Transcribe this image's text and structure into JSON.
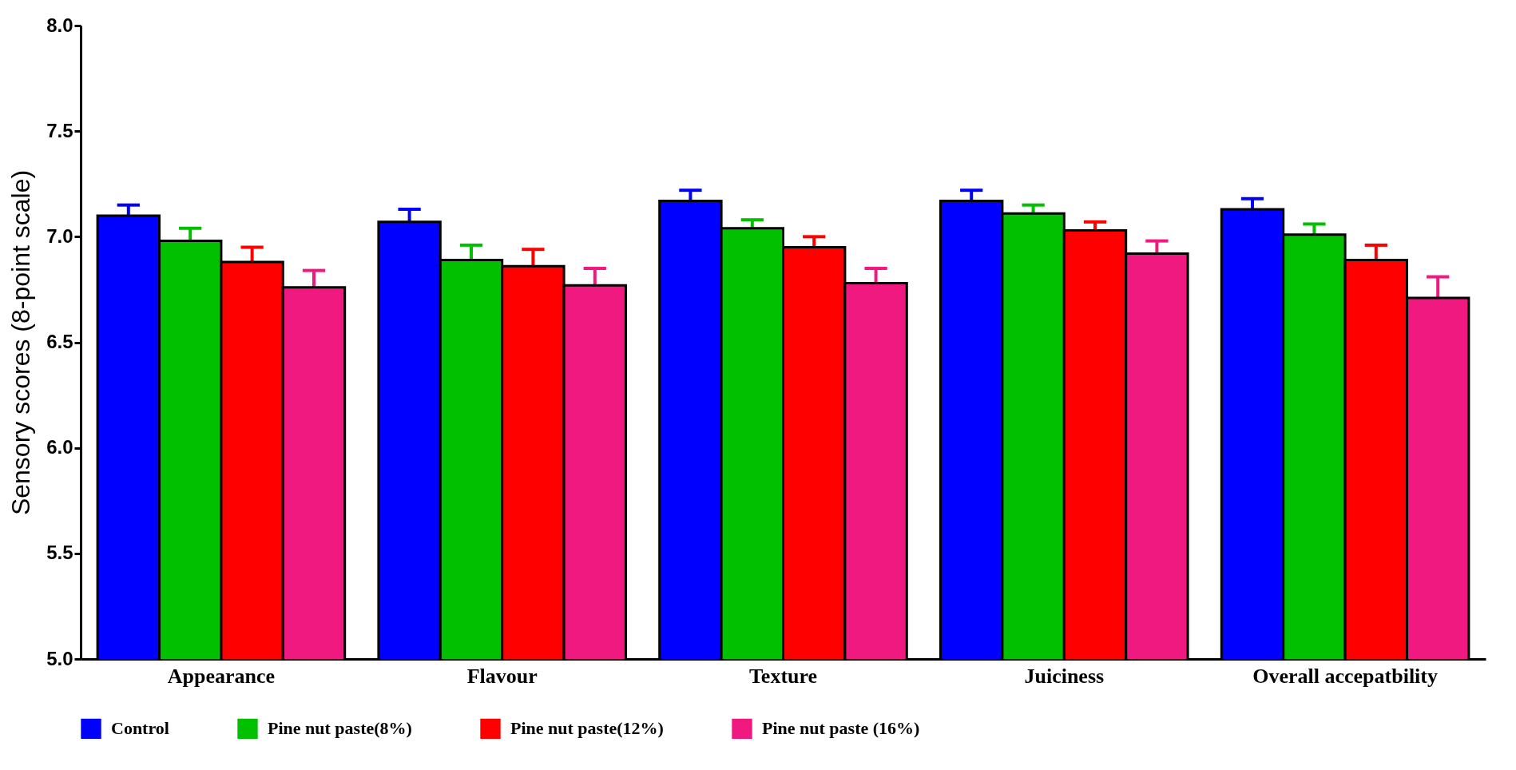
{
  "chart_data": {
    "type": "bar",
    "ylabel": "Sensory scores (8-point scale)",
    "categories": [
      "Appearance",
      "Flavour",
      "Texture",
      "Juiciness",
      "Overall accepatbility"
    ],
    "series": [
      {
        "name": "Control",
        "color": "#0000ff",
        "values": [
          7.1,
          7.07,
          7.17,
          7.17,
          7.13
        ],
        "errors": [
          0.05,
          0.06,
          0.05,
          0.05,
          0.05
        ]
      },
      {
        "name": "Pine nut paste(8%)",
        "color": "#00c000",
        "values": [
          6.98,
          6.89,
          7.04,
          7.11,
          7.01
        ],
        "errors": [
          0.06,
          0.07,
          0.04,
          0.04,
          0.05
        ]
      },
      {
        "name": "Pine nut paste(12%)",
        "color": "#ff0000",
        "values": [
          6.88,
          6.86,
          6.95,
          7.03,
          6.89
        ],
        "errors": [
          0.07,
          0.08,
          0.05,
          0.04,
          0.07
        ]
      },
      {
        "name": "Pine nut paste (16%)",
        "color": "#f0197f",
        "values": [
          6.76,
          6.77,
          6.78,
          6.92,
          6.71
        ],
        "errors": [
          0.08,
          0.08,
          0.07,
          0.06,
          0.1
        ]
      }
    ],
    "ylim": [
      5.0,
      8.0
    ],
    "yticks": [
      {
        "value": 5,
        "label": "5.0"
      },
      {
        "value": 5.5,
        "label": "5.5"
      },
      {
        "value": 6,
        "label": "6.0"
      },
      {
        "value": 6.5,
        "label": "6.5"
      },
      {
        "value": 7,
        "label": "7.0"
      },
      {
        "value": 7.5,
        "label": "7.5"
      },
      {
        "value": 8,
        "label": "8.0"
      }
    ],
    "grid": false,
    "legend": "bottom"
  }
}
